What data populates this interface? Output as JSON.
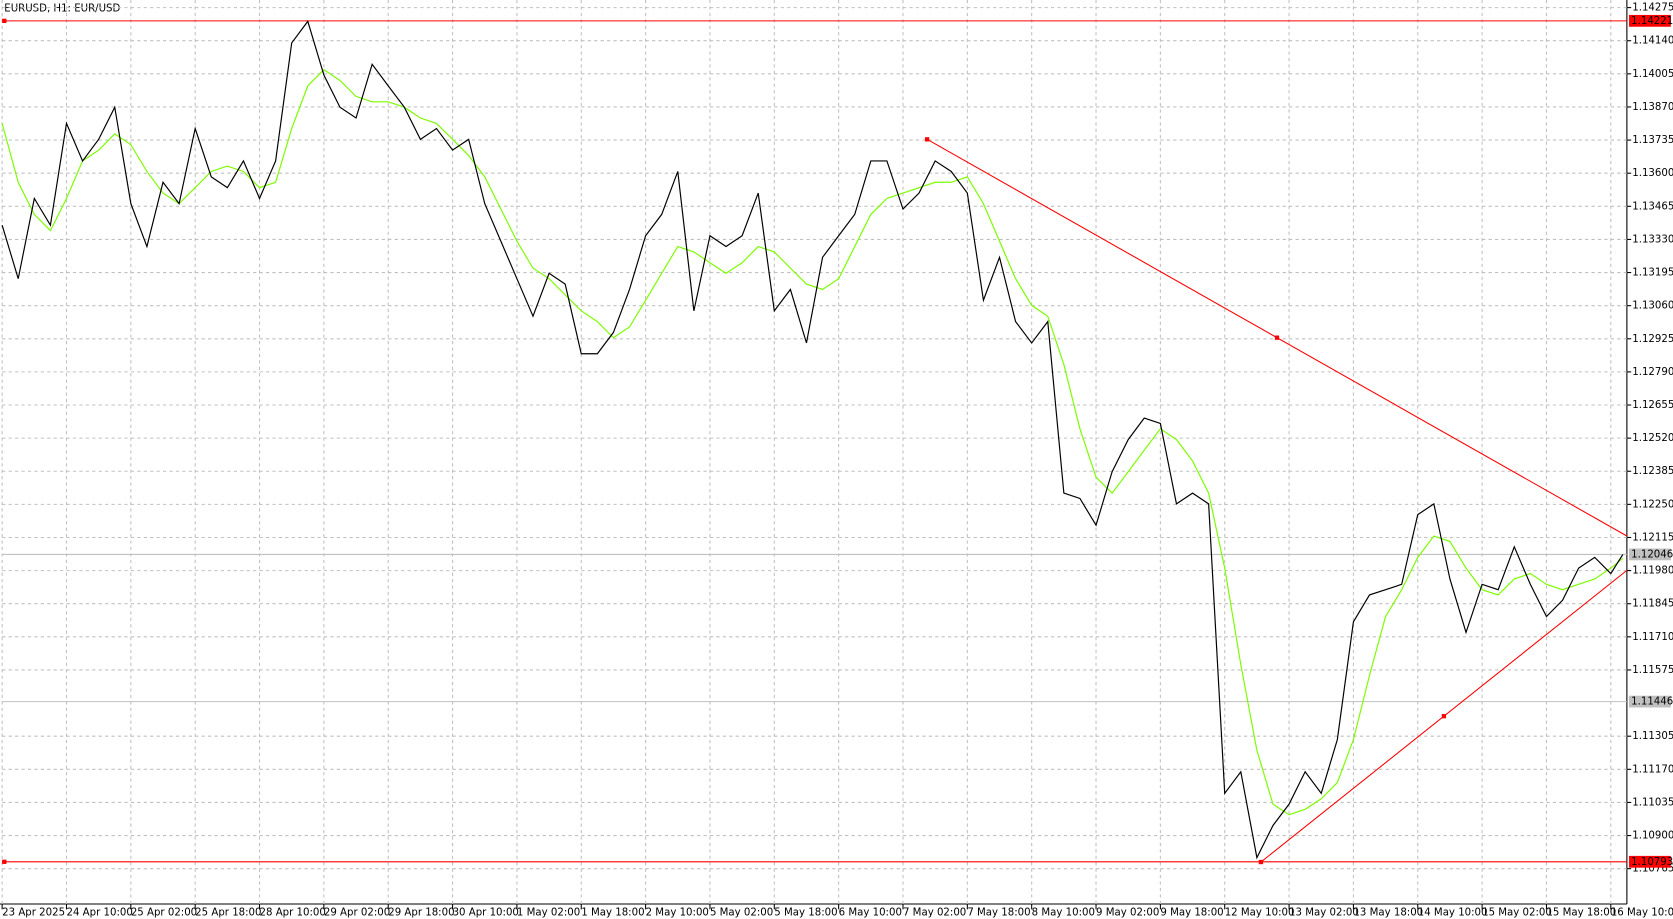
{
  "chart_data": {
    "type": "line",
    "title": "EURUSD, H1:  EUR/USD",
    "x": [
      0,
      4,
      8,
      12,
      16,
      20,
      24,
      28,
      32,
      36,
      40,
      44,
      48,
      52,
      56,
      60,
      64,
      68,
      72,
      76,
      80,
      84,
      88,
      92,
      96,
      100,
      104,
      108,
      112,
      116,
      120,
      124,
      128,
      132,
      136,
      140,
      144,
      148,
      152,
      156,
      160,
      164,
      168,
      172,
      176,
      180,
      184,
      188,
      192,
      196,
      200,
      204,
      208,
      212,
      216,
      220,
      224,
      228,
      232,
      236,
      240,
      244,
      248,
      252,
      256,
      260,
      264,
      268,
      272,
      276,
      280,
      284,
      288,
      292,
      296,
      300,
      304,
      308,
      312,
      316,
      320,
      324,
      328,
      332,
      336,
      340,
      344,
      348,
      352,
      356,
      360,
      364,
      368,
      372,
      376,
      380,
      384,
      388,
      392,
      396,
      400,
      403
    ],
    "series": [
      {
        "color": "#000000",
        "values": [
          1.13388,
          1.1317,
          1.13497,
          1.13388,
          1.13803,
          1.1365,
          1.13738,
          1.13869,
          1.13476,
          1.13301,
          1.13563,
          1.13476,
          1.13782,
          1.13585,
          1.13541,
          1.1365,
          1.13497,
          1.1365,
          1.14131,
          1.14219,
          1.14,
          1.13869,
          1.13825,
          1.14044,
          1.13956,
          1.13869,
          1.13738,
          1.13782,
          1.13694,
          1.13738,
          1.13476,
          1.13323,
          1.1317,
          1.13017,
          1.13192,
          1.13148,
          1.12864,
          1.12864,
          1.12951,
          1.13126,
          1.13345,
          1.13432,
          1.13607,
          1.13039,
          1.13345,
          1.13301,
          1.13345,
          1.13519,
          1.13039,
          1.13126,
          1.12908,
          1.13257,
          1.13345,
          1.13432,
          1.1365,
          1.1365,
          1.13454,
          1.13519,
          1.1365,
          1.13607,
          1.13519,
          1.13082,
          1.13257,
          1.12995,
          1.12908,
          1.12995,
          1.12296,
          1.12274,
          1.12165,
          1.12383,
          1.12514,
          1.12602,
          1.1258,
          1.12252,
          1.12296,
          1.12252,
          1.11072,
          1.1116,
          1.1081,
          1.10941,
          1.11028,
          1.1116,
          1.11072,
          1.11291,
          1.11771,
          1.11881,
          1.11902,
          1.11924,
          1.12208,
          1.12252,
          1.11946,
          1.11728,
          1.11924,
          1.11902,
          1.12077,
          1.11924,
          1.11793,
          1.11859,
          1.1199,
          1.12034,
          1.11968,
          1.12046
        ]
      },
      {
        "color": "#7cfc00",
        "values": [
          1.13803,
          1.13563,
          1.13432,
          1.13366,
          1.13497,
          1.1365,
          1.13694,
          1.1376,
          1.13716,
          1.13607,
          1.13519,
          1.13476,
          1.13541,
          1.13607,
          1.13629,
          1.13607,
          1.13541,
          1.13563,
          1.13782,
          1.13956,
          1.14022,
          1.13978,
          1.13913,
          1.13891,
          1.13891,
          1.13869,
          1.13825,
          1.13803,
          1.13738,
          1.13672,
          1.13585,
          1.13454,
          1.13323,
          1.13213,
          1.1317,
          1.13104,
          1.13039,
          1.12995,
          1.12929,
          1.12973,
          1.13082,
          1.13192,
          1.13301,
          1.13279,
          1.13235,
          1.13192,
          1.13235,
          1.13301,
          1.13279,
          1.13213,
          1.13148,
          1.13126,
          1.1317,
          1.13301,
          1.13432,
          1.13497,
          1.13519,
          1.13541,
          1.13563,
          1.13563,
          1.13585,
          1.13476,
          1.13323,
          1.1317,
          1.13061,
          1.13017,
          1.1282,
          1.12558,
          1.12361,
          1.12296,
          1.12383,
          1.12471,
          1.12558,
          1.12514,
          1.12427,
          1.12296,
          1.1199,
          1.11597,
          1.11247,
          1.11028,
          1.10985,
          1.11007,
          1.1105,
          1.11116,
          1.11291,
          1.11553,
          1.11793,
          1.11902,
          1.12034,
          1.12121,
          1.12099,
          1.1199,
          1.11902,
          1.11881,
          1.11946,
          1.11968,
          1.11924,
          1.11902,
          1.11924,
          1.11946,
          1.1199,
          1.1203
        ]
      }
    ],
    "xlim": [
      0,
      404
    ],
    "xticks": [
      {
        "value": 0,
        "label": "23 Apr 2025"
      },
      {
        "value": 16,
        "label": "24 Apr 10:00"
      },
      {
        "value": 32,
        "label": "25 Apr 02:00"
      },
      {
        "value": 48,
        "label": "25 Apr 18:00"
      },
      {
        "value": 64,
        "label": "28 Apr 10:00"
      },
      {
        "value": 80,
        "label": "29 Apr 02:00"
      },
      {
        "value": 96,
        "label": "29 Apr 18:00"
      },
      {
        "value": 112,
        "label": "30 Apr 10:00"
      },
      {
        "value": 128,
        "label": "1 May 02:00"
      },
      {
        "value": 144,
        "label": "1 May 18:00"
      },
      {
        "value": 160,
        "label": "2 May 10:00"
      },
      {
        "value": 176,
        "label": "5 May 02:00"
      },
      {
        "value": 192,
        "label": "5 May 18:00"
      },
      {
        "value": 208,
        "label": "6 May 10:00"
      },
      {
        "value": 224,
        "label": "7 May 02:00"
      },
      {
        "value": 240,
        "label": "7 May 18:00"
      },
      {
        "value": 256,
        "label": "8 May 10:00"
      },
      {
        "value": 272,
        "label": "9 May 02:00"
      },
      {
        "value": 288,
        "label": "9 May 18:00"
      },
      {
        "value": 304,
        "label": "12 May 10:00"
      },
      {
        "value": 320,
        "label": "13 May 02:00"
      },
      {
        "value": 336,
        "label": "13 May 18:00"
      },
      {
        "value": 352,
        "label": "14 May 10:00"
      },
      {
        "value": 368,
        "label": "15 May 02:00"
      },
      {
        "value": 384,
        "label": "15 May 18:00"
      },
      {
        "value": 400,
        "label": "16 May 10:00"
      }
    ],
    "ylim": [
      1.10621,
      1.14306
    ],
    "yticks": [
      1.14275,
      {
        "value": 1.1414,
        "label": "1.14140"
      },
      1.14005,
      {
        "value": 1.1387,
        "label": "1.13870"
      },
      1.13735,
      {
        "value": 1.136,
        "label": "1.13600"
      },
      1.13465,
      {
        "value": 1.1333,
        "label": "1.13330"
      },
      1.13195,
      {
        "value": 1.1306,
        "label": "1.13060"
      },
      1.12925,
      {
        "value": 1.1279,
        "label": "1.12790"
      },
      1.12655,
      {
        "value": 1.1252,
        "label": "1.12520"
      },
      1.12385,
      {
        "value": 1.1225,
        "label": "1.12250"
      },
      1.12115,
      {
        "value": 1.1198,
        "label": "1.11980"
      },
      1.11845,
      {
        "value": 1.1171,
        "label": "1.11710"
      },
      1.11575,
      1.11305,
      {
        "value": 1.1117,
        "label": "1.11170"
      },
      1.11035,
      {
        "value": 1.109,
        "label": "1.10900"
      },
      1.10765
    ],
    "grid": true,
    "hlines": [
      {
        "value": 1.14221,
        "color": "#ff0000"
      },
      {
        "value": 1.10793,
        "color": "#ff0000"
      },
      {
        "value": 1.12046,
        "color": "#c0c0c0"
      },
      {
        "value": 1.11446,
        "color": "#c0c0c0"
      }
    ],
    "trendlines": [
      {
        "color": "#ff0000",
        "x": [
          230,
          404
        ],
        "y": [
          1.13738,
          1.12121
        ]
      },
      {
        "color": "#ff0000",
        "x": [
          313,
          404
        ],
        "y": [
          1.10792,
          1.11981
        ]
      }
    ]
  }
}
